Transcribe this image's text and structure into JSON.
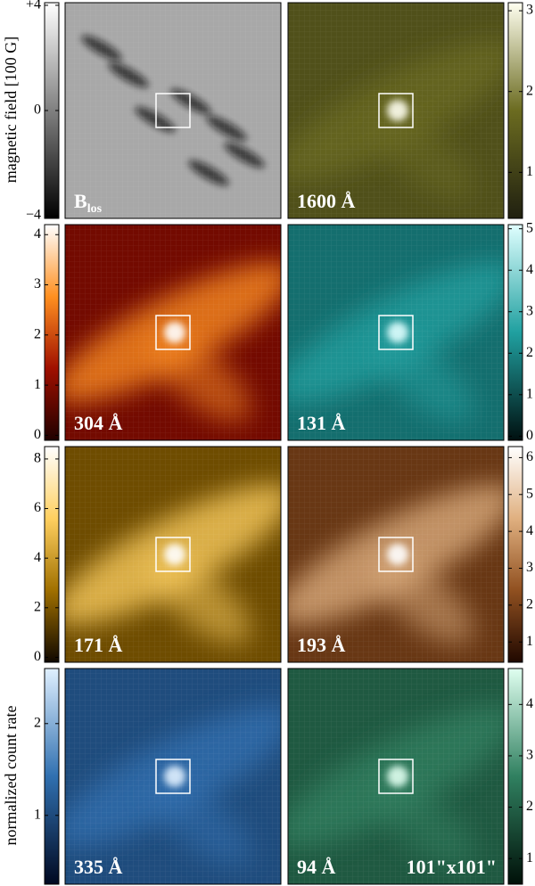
{
  "y_labels": [
    "magnetic field  [100 G]",
    "normalized count rate"
  ],
  "size_label": "101\"x101\"",
  "panels": [
    {
      "label": "B",
      "label_sub": "los",
      "colors": [
        "#000000",
        "#808080",
        "#ffffff"
      ],
      "colorbar": {
        "lim": [
          -4.1,
          4.1
        ],
        "ticks": [
          {
            "value": 4,
            "label": "+4"
          },
          0,
          {
            "value": -4,
            "label": "−4"
          }
        ]
      }
    },
    {
      "label": "1600 Å",
      "colors": [
        "#202010",
        "#6b6b20",
        "#fffff0"
      ],
      "colorbar": {
        "lim": [
          0.43,
          3.1
        ],
        "ticks": [
          1,
          2,
          3
        ]
      }
    },
    {
      "label": "304 Å",
      "colors": [
        "#200000",
        "#a01000",
        "#ff9020",
        "#ffffff"
      ],
      "colorbar": {
        "lim": [
          -0.1,
          4.2
        ],
        "ticks": [
          0,
          1,
          2,
          3,
          4
        ]
      }
    },
    {
      "label": "131 Å",
      "colors": [
        "#001010",
        "#20a0a0",
        "#e0ffff"
      ],
      "colorbar": {
        "lim": [
          -0.1,
          5.1
        ],
        "ticks": [
          0,
          1,
          2,
          3,
          4,
          5
        ]
      }
    },
    {
      "label": "171 Å",
      "colors": [
        "#100800",
        "#a07000",
        "#ffd060",
        "#ffffff"
      ],
      "colorbar": {
        "lim": [
          -0.2,
          8.5
        ],
        "ticks": [
          0,
          2,
          4,
          6,
          8
        ]
      }
    },
    {
      "label": "193 Å",
      "colors": [
        "#200800",
        "#905020",
        "#e0b080",
        "#ffffff"
      ],
      "colorbar": {
        "lim": [
          0.45,
          6.3
        ],
        "ticks": [
          1,
          2,
          3,
          4,
          5,
          6
        ]
      }
    },
    {
      "label": "335 Å",
      "colors": [
        "#000820",
        "#3070b0",
        "#e0f0ff"
      ],
      "colorbar": {
        "lim": [
          0.25,
          2.6
        ],
        "ticks": [
          1,
          2
        ]
      }
    },
    {
      "label": "94 Å",
      "colors": [
        "#001008",
        "#308060",
        "#e0fff0"
      ],
      "colorbar": {
        "lim": [
          0.5,
          4.7
        ],
        "ticks": [
          1,
          2,
          3,
          4
        ]
      }
    }
  ]
}
